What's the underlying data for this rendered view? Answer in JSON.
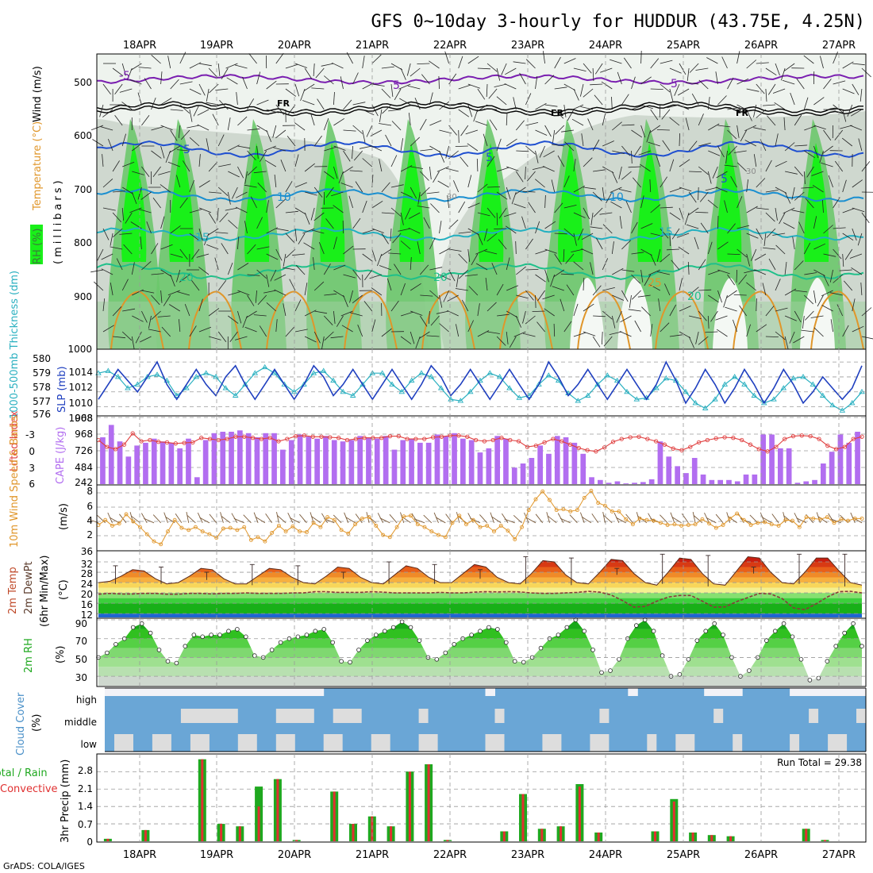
{
  "title": "GFS 0~10day 3-hourly for HUDDUR (43.75E, 4.25N)",
  "credit": "GrADS: COLA/IGES",
  "dates": [
    "18APR",
    "19APR",
    "20APR",
    "21APR",
    "22APR",
    "23APR",
    "24APR",
    "25APR",
    "26APR",
    "27APR"
  ],
  "colors": {
    "rh_light": "#dfe8df",
    "rh_mid": "#9fd09f",
    "rh_green": "#6cc86c",
    "rh_bright": "#19f019",
    "slp": "#1f3fbf",
    "thick": "#2ab0c0",
    "cape": "#b26ef0",
    "li": "#e04040",
    "wind": "#e0962a",
    "barb": "#7a5a3a",
    "rain": "#1fa81f",
    "conv": "#e03030",
    "cloud": "#6aa6d6",
    "cloud_clear": "#dddddd"
  },
  "chart_data": [
    {
      "type": "heatmap",
      "name": "upper",
      "ylabel_parts": [
        "RH (%)",
        "Temperature (°C)",
        "Wind (m/s)",
        "(millibars)"
      ],
      "yticks": [
        "500",
        "600",
        "700",
        "800",
        "900",
        "1000"
      ],
      "ylim": [
        1000,
        450
      ],
      "contour_labels": [
        "-5",
        "5",
        "-5",
        "FR",
        "FR",
        "FR",
        "5",
        "5",
        "5",
        "10",
        "10",
        "15",
        "15",
        "20",
        "20",
        "20",
        "25",
        "30",
        "30"
      ]
    },
    {
      "type": "line",
      "name": "slp",
      "ylabel": "SLP (mb)",
      "ylabel2": "1000-500mb Thickness (dm)",
      "left_ticks": [
        "580",
        "579",
        "578",
        "577",
        "576"
      ],
      "right_ticks": [
        "1014",
        "1012",
        "1010",
        "1008"
      ],
      "ylim": [
        1007,
        1015.5
      ],
      "slp": [
        1009,
        1011,
        1013,
        1011.5,
        1010,
        1012,
        1014,
        1011,
        1009,
        1011,
        1013,
        1011,
        1009.5,
        1012,
        1013.5,
        1011,
        1009,
        1011,
        1013,
        1011,
        1009,
        1011,
        1013.5,
        1012,
        1009.5,
        1011,
        1013,
        1011,
        1009,
        1011,
        1013,
        1011,
        1009,
        1011,
        1013.5,
        1012,
        1009.5,
        1011,
        1013,
        1011,
        1009,
        1011,
        1013,
        1011,
        1009,
        1011,
        1014,
        1012,
        1009.5,
        1011,
        1013,
        1011,
        1009,
        1011,
        1013,
        1011,
        1009,
        1011,
        1014,
        1011.5,
        1008.5,
        1010.5,
        1013,
        1011,
        1008.5,
        1010.5,
        1013,
        1011,
        1008.5,
        1010.5,
        1013,
        1011,
        1008.5,
        1010,
        1012,
        1010.5,
        1009,
        1010.5,
        1013.5
      ],
      "thickness": [
        1012.5,
        1012.8,
        1012,
        1010.5,
        1011,
        1012,
        1012.3,
        1011.5,
        1009.5,
        1010.5,
        1012,
        1012.5,
        1012,
        1010.5,
        1009.5,
        1011,
        1012.5,
        1013.3,
        1012.5,
        1011,
        1010,
        1011,
        1012.5,
        1012.8,
        1011.5,
        1010,
        1009.5,
        1011,
        1012.5,
        1012.5,
        1011,
        1010,
        1011.5,
        1012.5,
        1012,
        1010.5,
        1009,
        1008.8,
        1010,
        1011.5,
        1012.5,
        1012,
        1010.5,
        1009.2,
        1009.5,
        1011,
        1012.2,
        1011.5,
        1009.8,
        1008.8,
        1009.5,
        1011,
        1012.2,
        1011.5,
        1010,
        1009,
        1009.2,
        1010.5,
        1011.8,
        1011.5,
        1010,
        1008.5,
        1007.8,
        1009,
        1011,
        1012,
        1011,
        1009.5,
        1008.5,
        1009,
        1010.5,
        1011.8,
        1012,
        1011,
        1009.5,
        1008.2,
        1007.5,
        1008.5,
        1010
      ]
    },
    {
      "type": "bar",
      "name": "cape",
      "ylabel": "CAPE (J/kg)",
      "ylabel2": "Lifted Index",
      "left_ticks": [
        "-3",
        "0",
        "3",
        "6"
      ],
      "right_ticks": [
        "968",
        "726",
        "484",
        "242"
      ],
      "ylim": [
        0,
        968
      ],
      "cape": [
        680,
        860,
        620,
        400,
        560,
        600,
        660,
        620,
        600,
        520,
        660,
        100,
        640,
        740,
        760,
        760,
        780,
        740,
        680,
        740,
        740,
        500,
        640,
        720,
        690,
        660,
        700,
        640,
        620,
        640,
        700,
        680,
        660,
        700,
        500,
        640,
        660,
        600,
        600,
        720,
        700,
        740,
        660,
        640,
        460,
        520,
        700,
        660,
        240,
        300,
        380,
        560,
        440,
        700,
        680,
        600,
        440,
        100,
        60,
        20,
        40,
        10,
        20,
        30,
        70,
        620,
        400,
        260,
        160,
        380,
        140,
        60,
        60,
        60,
        40,
        140,
        140,
        720,
        720,
        520,
        520,
        20,
        40,
        60,
        300,
        470,
        720,
        600,
        760
      ],
      "li_axis": [
        -3,
        6
      ],
      "li": [
        -1.8,
        -0.6,
        -0.2,
        -1,
        -3,
        -1.6,
        -1.8,
        -1.5,
        -1.4,
        -1.2,
        -1.3,
        -1.4,
        -2.2,
        -2,
        -1.8,
        -2,
        -2.4,
        -2.4,
        -2.2,
        -2,
        -2.2,
        -1.6,
        -2,
        -2.5,
        -2.6,
        -2.4,
        -2.4,
        -2.3,
        -2.2,
        -1.8,
        -2,
        -2.2,
        -2.2,
        -2.2,
        -2.5,
        -2.5,
        -2,
        -2,
        -2,
        -2.3,
        -2.4,
        -2.6,
        -2.6,
        -2.4,
        -1.8,
        -1.6,
        -1.8,
        -2.2,
        -1.8,
        -1.6,
        -0.6,
        -0.8,
        -1.4,
        -2,
        -1.6,
        -1,
        -0.4,
        0,
        0.2,
        -0.5,
        -1.5,
        -2,
        -2.3,
        -2.4,
        -2,
        -1.6,
        -1,
        -0.3,
        0,
        -0.6,
        -1.4,
        -1.8,
        -2.1,
        -2.3,
        -2.2,
        -1.8,
        -1,
        -0.2,
        0.2,
        -0.6,
        -2,
        -2.5,
        -2.6,
        -2.5,
        -2,
        -0.8,
        -0.2,
        -0.6,
        -2,
        -2.4
      ]
    },
    {
      "type": "line",
      "name": "wind",
      "ylabel": "10m Wind Speed & Barbs",
      "ylabel2": "(m/s)",
      "left_ticks": [
        "8",
        "6",
        "4",
        "2"
      ],
      "ylim": [
        0,
        9
      ],
      "values": [
        3.5,
        4.2,
        3.4,
        3.7,
        5,
        4,
        3.2,
        2.2,
        1.2,
        0.8,
        2.6,
        4.2,
        3.1,
        2.8,
        3.2,
        2.6,
        2.2,
        1.7,
        3,
        3.1,
        2.8,
        3.2,
        1.4,
        1.8,
        1.2,
        2.4,
        3.4,
        2.6,
        3.3,
        2.6,
        2.5,
        3.8,
        3.2,
        4.6,
        4.2,
        2.8,
        2.3,
        3.6,
        4.4,
        4.6,
        3.4,
        2.1,
        1.8,
        3.2,
        4.7,
        4.8,
        3.6,
        3.2,
        2.6,
        2.1,
        1.8,
        3.8,
        4.8,
        3.6,
        4.2,
        3.2,
        3.4,
        2.6,
        3.4,
        2.7,
        1.5,
        3.2,
        5.6,
        7.1,
        8.2,
        7,
        5.6,
        5.7,
        5.4,
        5.6,
        7.3,
        8.3,
        6.6,
        6.2,
        5.4,
        5.4,
        4.3,
        3.6,
        4.4,
        4.2,
        4.1,
        3.8,
        3.5,
        3.6,
        3.4,
        3.5,
        3.6,
        4.3,
        3.7,
        3.1,
        3.5,
        4.4,
        5.1,
        4.2,
        3.5,
        3.8,
        3.9,
        3.6,
        3.4,
        4.2,
        4.1,
        3.2,
        4.6,
        4.4,
        4.3,
        4.6,
        3.8,
        4.3,
        4.1,
        4.4,
        4.4
      ]
    },
    {
      "type": "area",
      "name": "temp",
      "ylabel": "2m Temp",
      "ylabel2": "2m DewPt",
      "ylabel3": "(6hr Min/Max)",
      "ylabel4": "(°C)",
      "left_ticks": [
        "36",
        "32",
        "28",
        "24",
        "20",
        "16",
        "12"
      ],
      "ylim": [
        10.5,
        36
      ],
      "temp": [
        24,
        24.5,
        26.5,
        29,
        28.5,
        25.5,
        23.5,
        24,
        26.5,
        29.5,
        29,
        25.5,
        23.5,
        23.5,
        26.5,
        29.5,
        29,
        26,
        24,
        23.5,
        26.5,
        30,
        29.5,
        26,
        24,
        23.5,
        27,
        30.5,
        29.5,
        26,
        24,
        24,
        27.5,
        31,
        30,
        26,
        24,
        23.5,
        27.5,
        32.5,
        32,
        27,
        24,
        23.5,
        28,
        33,
        32.5,
        27.5,
        24,
        23,
        28,
        33.5,
        33,
        27.5,
        23.5,
        23,
        28.5,
        34,
        33.5,
        28,
        24,
        23.5,
        28,
        33.5,
        33.5,
        28.5,
        24,
        23
      ],
      "dew": [
        19.5,
        19.8,
        19.6,
        19.6,
        19.8,
        19.8,
        19.5,
        19.5,
        19.8,
        19.8,
        19.6,
        19.8,
        19.8,
        20,
        19.8,
        19.8,
        19.8,
        20,
        20,
        20.5,
        20.5,
        20.2,
        20.2,
        20.2,
        20.5,
        20.3,
        20,
        20,
        20,
        20,
        20.2,
        20,
        20,
        20.3,
        20.5,
        20.4,
        20.5,
        20.4,
        20,
        19.8,
        19.8,
        20,
        20.2,
        20.6,
        20.3,
        19.2,
        17,
        14.5,
        14.8,
        16.8,
        18.4,
        19,
        19,
        16.8,
        14.5,
        14.6,
        16.6,
        18.2,
        19.8,
        19.6,
        17.8,
        14.2,
        13.5,
        15.8,
        18.5,
        20.5,
        20.6,
        20
      ]
    },
    {
      "type": "area",
      "name": "rh",
      "ylabel": "2m RH",
      "ylabel2": "(%)",
      "left_ticks": [
        "90",
        "70",
        "50",
        "30"
      ],
      "ylim": [
        20,
        90
      ],
      "values": [
        50,
        55,
        64,
        70,
        82,
        86,
        76,
        58,
        46,
        44,
        62,
        74,
        72,
        74,
        74,
        78,
        80,
        72,
        52,
        50,
        58,
        66,
        70,
        72,
        74,
        78,
        80,
        66,
        46,
        45,
        58,
        68,
        74,
        78,
        82,
        88,
        82,
        68,
        50,
        48,
        55,
        64,
        70,
        74,
        78,
        82,
        80,
        66,
        46,
        45,
        50,
        60,
        70,
        74,
        82,
        90,
        78,
        58,
        34,
        36,
        48,
        70,
        84,
        90,
        78,
        52,
        30,
        32,
        48,
        68,
        78,
        86,
        74,
        50,
        30,
        36,
        50,
        68,
        78,
        86,
        72,
        48,
        26,
        28,
        46,
        62,
        76,
        86,
        62
      ]
    },
    {
      "type": "heatmap",
      "name": "cloud",
      "ylabel": "Cloud Cover",
      "ylabel2": "(%)",
      "levels": [
        "high",
        "middle",
        "low"
      ]
    },
    {
      "type": "bar",
      "name": "precip",
      "ylabel": "3hr Precip (mm)",
      "ylabel2": "Total / Rain",
      "ylabel3": "Convective",
      "left_ticks": [
        "2.8",
        "2.1",
        "1.4",
        "0.7",
        "0"
      ],
      "ylim": [
        0,
        3.45
      ],
      "run_total": "Run Total = 29.38",
      "total": [
        0.1,
        0,
        0.45,
        0,
        0,
        3.3,
        0.7,
        0.6,
        2.2,
        2.5,
        0.05,
        0,
        2.0,
        0.7,
        1.0,
        0.6,
        2.8,
        3.1,
        0.05,
        0,
        0,
        0.4,
        1.9,
        0.5,
        0.6,
        2.3,
        0.35,
        0,
        0,
        0.4,
        1.7,
        0.35,
        0.25,
        0.2,
        0,
        0,
        0,
        0.5,
        0.05,
        0
      ],
      "convective": [
        0.1,
        0,
        0.45,
        0.05,
        0,
        3.3,
        0.7,
        0.6,
        1.4,
        2.5,
        0.05,
        0,
        2.0,
        0.7,
        1.0,
        0.6,
        2.8,
        3.1,
        0.05,
        0,
        0,
        0.4,
        1.9,
        0.5,
        0.6,
        2.2,
        0.35,
        0,
        0,
        0.4,
        1.6,
        0.35,
        0.25,
        0.2,
        0,
        0,
        0,
        0.5,
        0.05,
        0
      ]
    }
  ]
}
